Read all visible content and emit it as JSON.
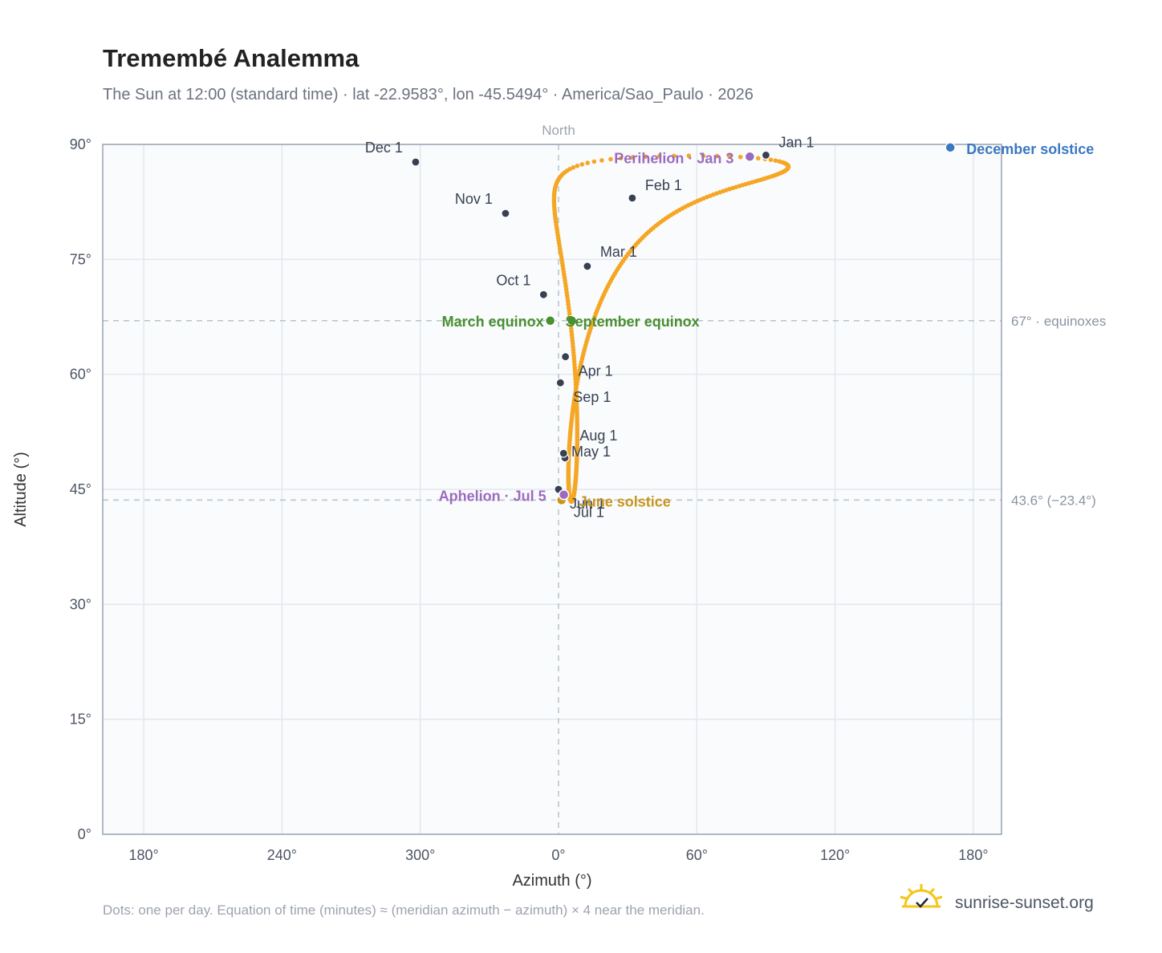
{
  "title": "Tremembé Analemma",
  "subtitle": "The Sun at 12:00 (standard time) · lat -22.9583°, lon -45.5494° · America/Sao_Paulo · 2026",
  "footnote": "Dots: one per day. Equation of time (minutes) ≈ (meridian azimuth − azimuth) × 4 near the meridian.",
  "brand": {
    "name": "sunrise-sunset.org",
    "logo_icon": "sun-check-icon",
    "logo_color": "#f5c518"
  },
  "colors": {
    "path": "#f5a623",
    "month_dot": "#374151",
    "equinox": "#4a8f30",
    "june_solstice": "#c8961e",
    "december_solstice": "#3a78c2",
    "apsis": "#9b6bbf"
  },
  "chart_data": {
    "type": "scatter",
    "xlabel": "Azimuth (°)",
    "ylabel": "Altitude (°)",
    "x_ticks": [
      "180°",
      "240°",
      "300°",
      "0°",
      "60°",
      "120°",
      "180°"
    ],
    "y_ticks": [
      "0°",
      "15°",
      "30°",
      "45°",
      "60°",
      "75°",
      "90°"
    ],
    "ylim": [
      0,
      90
    ],
    "grid": true,
    "meridian_label": "North",
    "reference_lines": [
      {
        "altitude": 67.0,
        "label": "67° · equinoxes"
      },
      {
        "altitude": 43.6,
        "label": "43.6° (−23.4°)"
      }
    ],
    "months": [
      {
        "label": "Jan 1",
        "azimuth": 90.0,
        "altitude": 88.6
      },
      {
        "label": "Feb 1",
        "azimuth": 32.0,
        "altitude": 83.0
      },
      {
        "label": "Mar 1",
        "azimuth": 12.5,
        "altitude": 74.1
      },
      {
        "label": "Apr 1",
        "azimuth": 3.0,
        "altitude": 62.3
      },
      {
        "label": "May 1",
        "azimuth": 2.8,
        "altitude": 49.1
      },
      {
        "label": "Jun 1",
        "azimuth": 0.0,
        "altitude": 45.0
      },
      {
        "label": "Jul 1",
        "azimuth": 1.0,
        "altitude": 43.7
      },
      {
        "label": "Aug 1",
        "azimuth": 2.2,
        "altitude": 49.7
      },
      {
        "label": "Sep 1",
        "azimuth": 0.8,
        "altitude": 58.9
      },
      {
        "label": "Oct 1",
        "azimuth": -6.5,
        "altitude": 70.4
      },
      {
        "label": "Nov 1",
        "azimuth": -23.0,
        "altitude": 81.0
      },
      {
        "label": "Dec 1",
        "azimuth": -62.0,
        "altitude": 87.7
      }
    ],
    "events": [
      {
        "label": "March equinox",
        "azimuth": -3.6,
        "altitude": 67.0,
        "color": "#4a8f30"
      },
      {
        "label": "September equinox",
        "azimuth": 5.8,
        "altitude": 67.0,
        "color": "#4a8f30"
      },
      {
        "label": "June solstice",
        "azimuth": 1.3,
        "altitude": 43.6,
        "color": "#c8961e"
      },
      {
        "label": "December solstice",
        "azimuth": 170.0,
        "altitude": 89.6,
        "color": "#3a78c2"
      },
      {
        "label": "Perihelion · Jan 3",
        "azimuth": 83.0,
        "altitude": 88.4,
        "color": "#9b6bbf"
      },
      {
        "label": "Aphelion · Jul 5",
        "azimuth": 2.3,
        "altitude": 44.3,
        "color": "#9b6bbf"
      }
    ]
  }
}
